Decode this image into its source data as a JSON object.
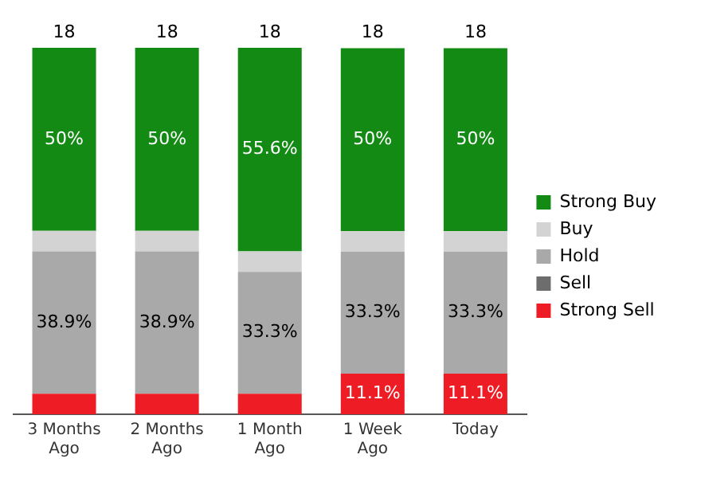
{
  "chart_data": {
    "type": "bar",
    "stacked": true,
    "categories": [
      "3 Months Ago",
      "2 Months Ago",
      "1 Month Ago",
      "1 Week Ago",
      "Today"
    ],
    "series": [
      {
        "name": "Strong Sell",
        "color": "#ee1c25",
        "values": [
          5.6,
          5.6,
          5.6,
          11.1,
          11.1
        ],
        "value_labels": [
          null,
          null,
          null,
          "11.1%",
          "11.1%"
        ]
      },
      {
        "name": "Sell",
        "color": "#6d6d6d",
        "values": [
          0,
          0,
          0,
          0,
          0
        ]
      },
      {
        "name": "Hold",
        "color": "#a9a9a9",
        "values": [
          38.9,
          38.9,
          33.3,
          33.3,
          33.3
        ],
        "value_labels": [
          "38.9%",
          "38.9%",
          "33.3%",
          "33.3%",
          "33.3%"
        ]
      },
      {
        "name": "Buy",
        "color": "#d3d3d3",
        "values": [
          5.6,
          5.6,
          5.6,
          5.6,
          5.6
        ]
      },
      {
        "name": "Strong Buy",
        "color": "#138a13",
        "values": [
          50,
          50,
          55.6,
          50,
          50
        ],
        "value_labels": [
          "50%",
          "50%",
          "55.6%",
          "50%",
          "50%"
        ]
      }
    ],
    "annotations": [
      "18",
      "18",
      "18",
      "18",
      "18"
    ],
    "legend": "right",
    "grid": false
  }
}
